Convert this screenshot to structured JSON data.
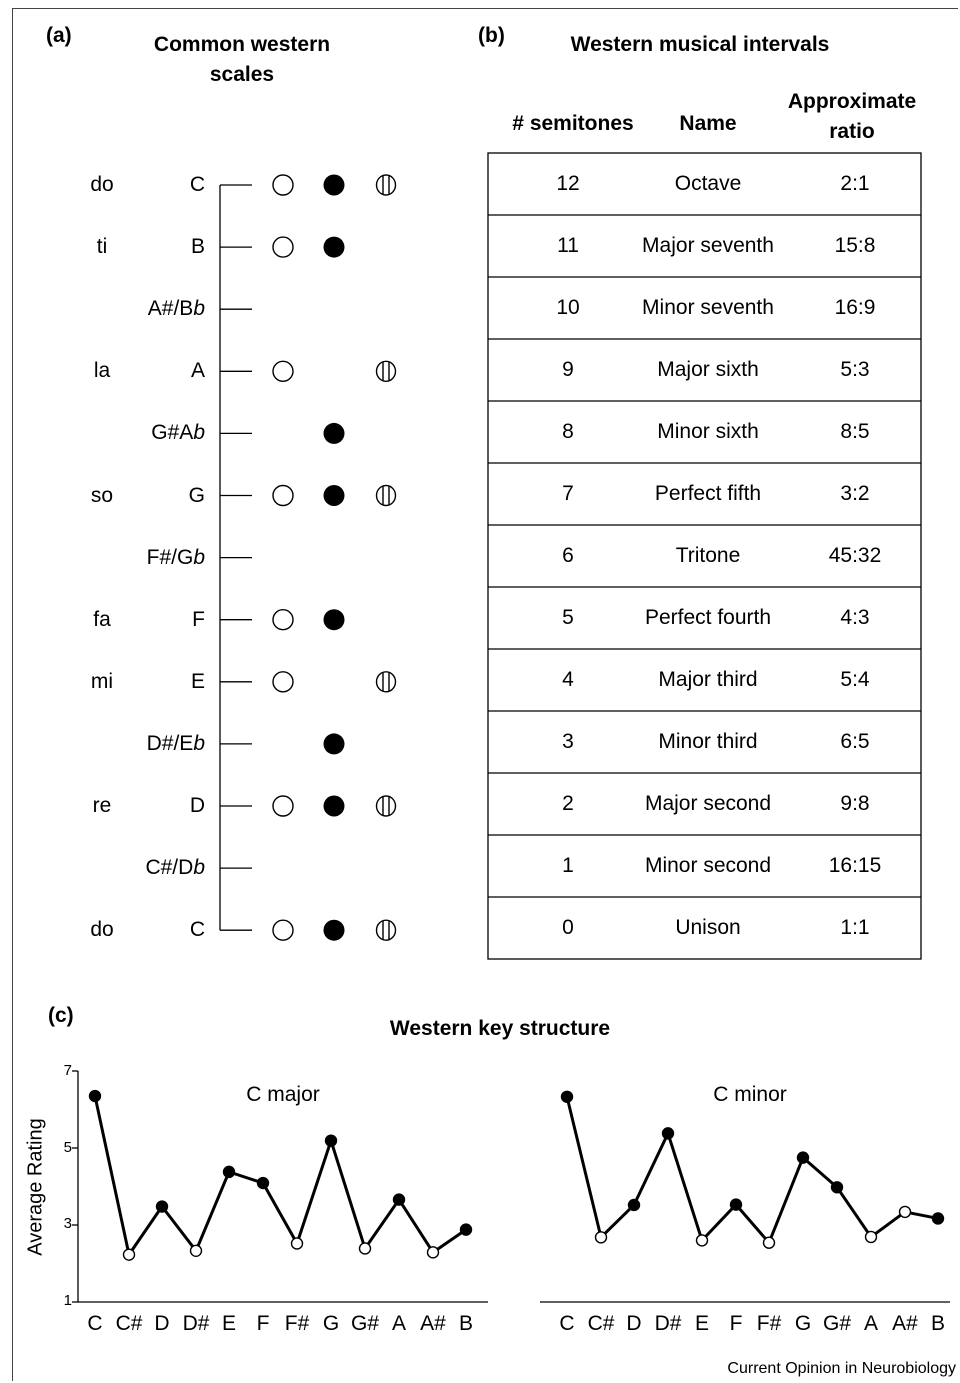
{
  "panel_a": {
    "label": "(a)",
    "title_line1": "Common western",
    "title_line2": "scales",
    "rows": [
      {
        "solfege": "do",
        "note": "C",
        "open": true,
        "filled": true,
        "half": true
      },
      {
        "solfege": "ti",
        "note": "B",
        "open": true,
        "filled": true,
        "half": false
      },
      {
        "solfege": "",
        "note": "A#/Bb",
        "open": false,
        "filled": false,
        "half": false
      },
      {
        "solfege": "la",
        "note": "A",
        "open": true,
        "filled": false,
        "half": true
      },
      {
        "solfege": "",
        "note": "G#Ab",
        "open": false,
        "filled": true,
        "half": false
      },
      {
        "solfege": "so",
        "note": "G",
        "open": true,
        "filled": true,
        "half": true
      },
      {
        "solfege": "",
        "note": "F#/Gb",
        "open": false,
        "filled": false,
        "half": false
      },
      {
        "solfege": "fa",
        "note": "F",
        "open": true,
        "filled": true,
        "half": false
      },
      {
        "solfege": "mi",
        "note": "E",
        "open": true,
        "filled": false,
        "half": true
      },
      {
        "solfege": "",
        "note": "D#/Eb",
        "open": false,
        "filled": true,
        "half": false
      },
      {
        "solfege": "re",
        "note": "D",
        "open": true,
        "filled": true,
        "half": true
      },
      {
        "solfege": "",
        "note": "C#/Db",
        "open": false,
        "filled": false,
        "half": false
      },
      {
        "solfege": "do",
        "note": "C",
        "open": true,
        "filled": true,
        "half": true
      }
    ]
  },
  "panel_b": {
    "label": "(b)",
    "title": "Western musical intervals",
    "headers": {
      "semitones": "# semitones",
      "name": "Name",
      "ratio_line1": "Approximate",
      "ratio_line2": "ratio"
    },
    "rows": [
      {
        "semitones": "12",
        "name": "Octave",
        "ratio": "2:1"
      },
      {
        "semitones": "11",
        "name": "Major seventh",
        "ratio": "15:8"
      },
      {
        "semitones": "10",
        "name": "Minor seventh",
        "ratio": "16:9"
      },
      {
        "semitones": "9",
        "name": "Major sixth",
        "ratio": "5:3"
      },
      {
        "semitones": "8",
        "name": "Minor sixth",
        "ratio": "8:5"
      },
      {
        "semitones": "7",
        "name": "Perfect fifth",
        "ratio": "3:2"
      },
      {
        "semitones": "6",
        "name": "Tritone",
        "ratio": "45:32"
      },
      {
        "semitones": "5",
        "name": "Perfect fourth",
        "ratio": "4:3"
      },
      {
        "semitones": "4",
        "name": "Major third",
        "ratio": "5:4"
      },
      {
        "semitones": "3",
        "name": "Minor third",
        "ratio": "6:5"
      },
      {
        "semitones": "2",
        "name": "Major second",
        "ratio": "9:8"
      },
      {
        "semitones": "1",
        "name": "Minor second",
        "ratio": "16:15"
      },
      {
        "semitones": "0",
        "name": "Unison",
        "ratio": "1:1"
      }
    ]
  },
  "panel_c": {
    "label": "(c)",
    "title": "Western key structure",
    "ylabel": "Average Rating",
    "yticks": [
      "7",
      "5",
      "3",
      "1"
    ]
  },
  "chart_data": [
    {
      "type": "line",
      "title": "C major",
      "ylabel": "Average Rating",
      "ylim": [
        1,
        7
      ],
      "categories": [
        "C",
        "C#",
        "D",
        "D#",
        "E",
        "F",
        "F#",
        "G",
        "G#",
        "A",
        "A#",
        "B"
      ],
      "values": [
        6.35,
        2.23,
        3.48,
        2.33,
        4.38,
        4.09,
        2.52,
        5.19,
        2.39,
        3.66,
        2.29,
        2.88
      ],
      "in_key": [
        true,
        false,
        true,
        false,
        true,
        true,
        false,
        true,
        false,
        true,
        false,
        true
      ]
    },
    {
      "type": "line",
      "title": "C minor",
      "ylabel": "Average Rating",
      "ylim": [
        1,
        7
      ],
      "categories": [
        "C",
        "C#",
        "D",
        "D#",
        "E",
        "F",
        "F#",
        "G",
        "G#",
        "A",
        "A#",
        "B"
      ],
      "values": [
        6.33,
        2.68,
        3.52,
        5.38,
        2.6,
        3.53,
        2.54,
        4.75,
        3.98,
        2.69,
        3.34,
        3.17
      ],
      "in_key": [
        true,
        false,
        true,
        true,
        false,
        true,
        false,
        true,
        true,
        false,
        false,
        true
      ]
    }
  ],
  "credit": "Current Opinion in Neurobiology"
}
